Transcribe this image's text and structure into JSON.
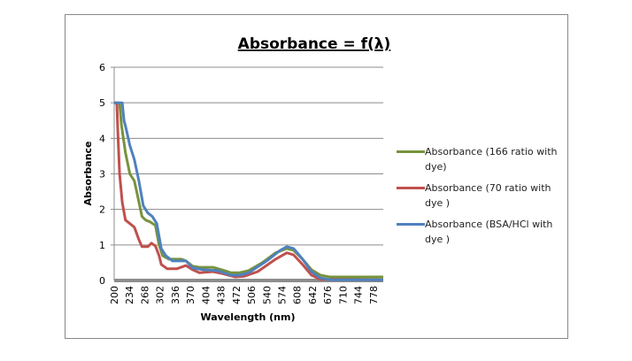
{
  "chart_data": {
    "type": "line",
    "title": "Absorbance = f(λ)",
    "xlabel": "Wavelength (nm)",
    "ylabel": "Absorbance",
    "xlim": [
      200,
      800
    ],
    "ylim": [
      0,
      6
    ],
    "yticks": [
      "0",
      "1",
      "2",
      "3",
      "4",
      "5",
      "6"
    ],
    "xticks": [
      "200",
      "234",
      "268",
      "302",
      "336",
      "370",
      "404",
      "438",
      "472",
      "506",
      "540",
      "574",
      "608",
      "642",
      "676",
      "710",
      "744",
      "778"
    ],
    "grid": true,
    "legend": "right",
    "series": [
      {
        "name": "Absorbance (166 ratio with dye)",
        "color": "#77933C",
        "points": [
          [
            200,
            5
          ],
          [
            212,
            5
          ],
          [
            216,
            4.4
          ],
          [
            225,
            3.6
          ],
          [
            235,
            3
          ],
          [
            245,
            2.8
          ],
          [
            252,
            2.4
          ],
          [
            262,
            1.8
          ],
          [
            270,
            1.7
          ],
          [
            280,
            1.65
          ],
          [
            292,
            1.55
          ],
          [
            300,
            1.0
          ],
          [
            308,
            0.7
          ],
          [
            322,
            0.6
          ],
          [
            350,
            0.6
          ],
          [
            360,
            0.55
          ],
          [
            375,
            0.4
          ],
          [
            390,
            0.37
          ],
          [
            420,
            0.37
          ],
          [
            440,
            0.3
          ],
          [
            460,
            0.22
          ],
          [
            480,
            0.22
          ],
          [
            500,
            0.28
          ],
          [
            530,
            0.5
          ],
          [
            560,
            0.78
          ],
          [
            585,
            0.9
          ],
          [
            600,
            0.85
          ],
          [
            620,
            0.6
          ],
          [
            640,
            0.3
          ],
          [
            660,
            0.15
          ],
          [
            680,
            0.1
          ],
          [
            800,
            0.1
          ]
        ]
      },
      {
        "name": "Absorbance (70 ratio with dye )",
        "color": "#C0504D",
        "points": [
          [
            200,
            5
          ],
          [
            206,
            5
          ],
          [
            208,
            4.2
          ],
          [
            212,
            3
          ],
          [
            218,
            2.2
          ],
          [
            225,
            1.7
          ],
          [
            235,
            1.6
          ],
          [
            245,
            1.5
          ],
          [
            255,
            1.15
          ],
          [
            262,
            0.95
          ],
          [
            275,
            0.95
          ],
          [
            283,
            1.05
          ],
          [
            292,
            0.97
          ],
          [
            300,
            0.7
          ],
          [
            305,
            0.45
          ],
          [
            318,
            0.33
          ],
          [
            340,
            0.33
          ],
          [
            360,
            0.42
          ],
          [
            375,
            0.3
          ],
          [
            390,
            0.22
          ],
          [
            420,
            0.25
          ],
          [
            440,
            0.2
          ],
          [
            470,
            0.1
          ],
          [
            490,
            0.12
          ],
          [
            520,
            0.25
          ],
          [
            560,
            0.6
          ],
          [
            585,
            0.78
          ],
          [
            600,
            0.72
          ],
          [
            620,
            0.45
          ],
          [
            640,
            0.15
          ],
          [
            660,
            0.03
          ],
          [
            800,
            0.02
          ]
        ]
      },
      {
        "name": "Absorbance (BSA/HCl with dye )",
        "color": "#4F81BD",
        "points": [
          [
            200,
            5
          ],
          [
            218,
            5
          ],
          [
            222,
            4.5
          ],
          [
            226,
            4.3
          ],
          [
            235,
            3.8
          ],
          [
            245,
            3.4
          ],
          [
            255,
            2.8
          ],
          [
            265,
            2.1
          ],
          [
            275,
            1.9
          ],
          [
            285,
            1.8
          ],
          [
            295,
            1.6
          ],
          [
            305,
            0.9
          ],
          [
            315,
            0.7
          ],
          [
            330,
            0.55
          ],
          [
            360,
            0.55
          ],
          [
            375,
            0.35
          ],
          [
            400,
            0.3
          ],
          [
            430,
            0.28
          ],
          [
            460,
            0.15
          ],
          [
            480,
            0.15
          ],
          [
            500,
            0.22
          ],
          [
            540,
            0.55
          ],
          [
            570,
            0.85
          ],
          [
            585,
            0.95
          ],
          [
            600,
            0.9
          ],
          [
            620,
            0.6
          ],
          [
            640,
            0.25
          ],
          [
            660,
            0.07
          ],
          [
            680,
            0.02
          ],
          [
            800,
            0.02
          ]
        ]
      }
    ]
  }
}
